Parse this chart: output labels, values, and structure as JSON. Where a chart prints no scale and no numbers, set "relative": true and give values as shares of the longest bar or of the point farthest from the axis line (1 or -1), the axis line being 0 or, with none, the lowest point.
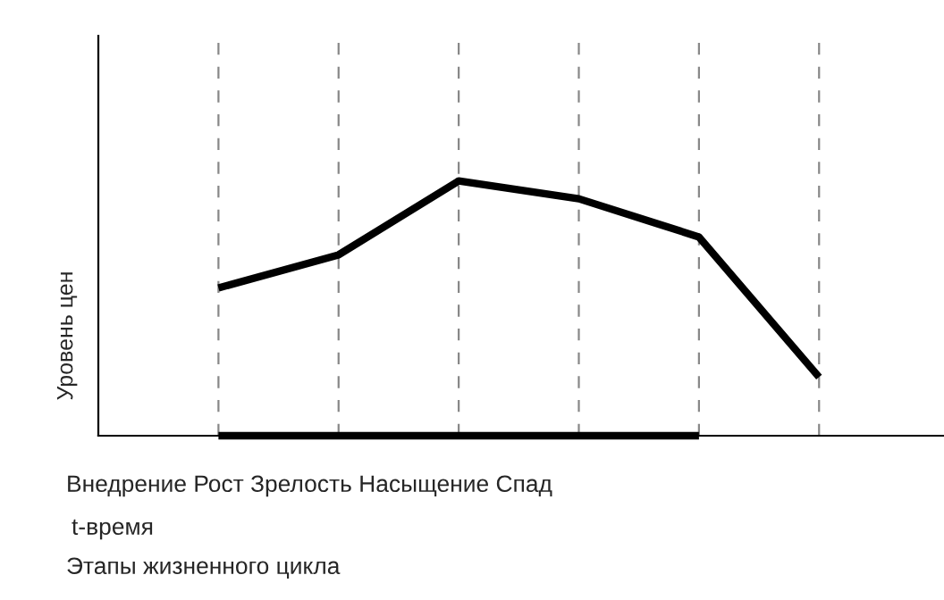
{
  "chart_data": {
    "type": "line",
    "relative": true,
    "ylabel": "Уровень цен",
    "xlabel": "t-время",
    "categories": [
      null,
      null,
      null,
      null,
      null,
      null
    ],
    "series": [
      {
        "color": "#000000",
        "values": [
          0.58,
          0.71,
          1,
          0.93,
          0.78,
          0.23
        ]
      },
      {
        "color": "#000000",
        "values": [
          0,
          0,
          0,
          0,
          0,
          null
        ]
      }
    ],
    "annotations": [
      "Внедрение Рост Зрелость Насыщение Спад",
      "Этапы жизненного цикла"
    ],
    "grid": "x",
    "legend": false,
    "marker": "none",
    "line_style": "solid"
  }
}
